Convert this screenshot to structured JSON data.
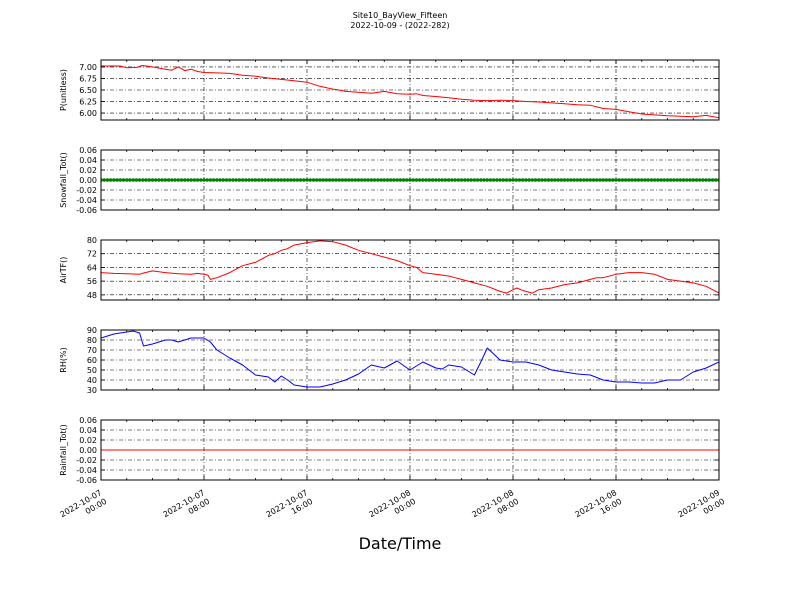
{
  "title": "Site10_BayView_Fifteen",
  "subtitle": "2022-10-09 - (2022-282)",
  "xlabel": "Date/Time",
  "x_ticks": [
    [
      "2022-10-07",
      "00:00"
    ],
    [
      "2022-10-07",
      "08:00"
    ],
    [
      "2022-10-07",
      "16:00"
    ],
    [
      "2022-10-08",
      "00:00"
    ],
    [
      "2022-10-08",
      "08:00"
    ],
    [
      "2022-10-08",
      "16:00"
    ],
    [
      "2022-10-09",
      "00:00"
    ]
  ],
  "colors": {
    "P": "#ff0000",
    "Snowfall": "#008000",
    "AirT": "#ff0000",
    "RH": "#0000ff",
    "Rainfall": "#ff0000"
  },
  "chart_data": [
    {
      "type": "line",
      "ylabel": "P(unitless)",
      "x_range_hours": [
        0,
        48
      ],
      "ylim": [
        5.85,
        7.15
      ],
      "yticks": [
        "6.00",
        "6.25",
        "6.50",
        "6.75",
        "7.00"
      ],
      "ytick_values": [
        6.0,
        6.25,
        6.5,
        6.75,
        7.0
      ],
      "grid": true,
      "series": [
        {
          "color": "#ff0000",
          "x": [
            0,
            1.5,
            2,
            2.8,
            3.2,
            4,
            5,
            5.5,
            6,
            6.5,
            7,
            7.5,
            8,
            9,
            10,
            11,
            12,
            13,
            14,
            15,
            16,
            17,
            18,
            18.5,
            19,
            20,
            21,
            22,
            23,
            24,
            24.5,
            25,
            26,
            27,
            28,
            29,
            30,
            31,
            32,
            33,
            34,
            35,
            36,
            37,
            38,
            39,
            40,
            41,
            42,
            43,
            44,
            45,
            46,
            47,
            48
          ],
          "values": [
            7.02,
            7.02,
            6.98,
            6.99,
            7.03,
            7.0,
            6.95,
            6.93,
            7.0,
            6.92,
            6.95,
            6.9,
            6.88,
            6.87,
            6.86,
            6.82,
            6.8,
            6.76,
            6.73,
            6.7,
            6.67,
            6.58,
            6.52,
            6.5,
            6.47,
            6.45,
            6.43,
            6.47,
            6.42,
            6.41,
            6.42,
            6.38,
            6.36,
            6.33,
            6.3,
            6.28,
            6.27,
            6.28,
            6.27,
            6.25,
            6.24,
            6.22,
            6.2,
            6.18,
            6.17,
            6.1,
            6.08,
            6.03,
            5.98,
            5.96,
            5.94,
            5.93,
            5.92,
            5.95,
            5.9
          ]
        }
      ]
    },
    {
      "type": "scatter",
      "ylabel": "Snowfall_Tot()",
      "x_range_hours": [
        0,
        48
      ],
      "ylim": [
        -0.06,
        0.06
      ],
      "yticks": [
        "-0.06",
        "-0.04",
        "-0.02",
        "0.00",
        "0.02",
        "0.04",
        "0.06"
      ],
      "ytick_values": [
        -0.06,
        -0.04,
        -0.02,
        0.0,
        0.02,
        0.04,
        0.06
      ],
      "grid": true,
      "series": [
        {
          "color": "#008000",
          "constant": 0.0,
          "interval_hours": 0.25
        }
      ]
    },
    {
      "type": "line",
      "ylabel": "AirTF()",
      "x_range_hours": [
        0,
        48
      ],
      "ylim": [
        45,
        80
      ],
      "yticks": [
        "48",
        "56",
        "64",
        "72",
        "80"
      ],
      "ytick_values": [
        48,
        56,
        64,
        72,
        80
      ],
      "grid": true,
      "series": [
        {
          "color": "#ff0000",
          "x": [
            0,
            1,
            2,
            3,
            3.2,
            4,
            5,
            6,
            7,
            7.5,
            8,
            8.3,
            8.5,
            9,
            10,
            10.5,
            11,
            12,
            12.5,
            13,
            13.5,
            14,
            14.5,
            15,
            16,
            17,
            18,
            19,
            20,
            21,
            22,
            23,
            24,
            24.5,
            25,
            26,
            27,
            27.5,
            28,
            29,
            30,
            31,
            31.5,
            32,
            32.3,
            32.6,
            33,
            33.5,
            34,
            35,
            36,
            37,
            38,
            38.5,
            39,
            40,
            41,
            42,
            43,
            44,
            45,
            46,
            47,
            48
          ],
          "values": [
            61,
            60.5,
            60.3,
            60,
            60.5,
            62,
            61,
            60.3,
            60,
            60.5,
            60,
            59.5,
            57,
            58,
            61,
            63,
            65,
            67,
            69,
            71,
            72,
            74,
            75,
            77,
            78.5,
            79.5,
            79,
            77,
            74,
            72,
            70,
            68,
            65,
            64,
            61,
            60,
            59,
            58,
            57,
            55,
            53,
            50,
            49,
            51,
            52,
            51,
            50,
            49,
            51,
            52,
            54,
            55,
            57,
            58,
            58,
            60,
            61,
            61,
            60,
            57,
            56,
            55,
            53,
            49
          ]
        }
      ]
    },
    {
      "type": "line",
      "ylabel": "RH(%)",
      "x_range_hours": [
        0,
        48
      ],
      "ylim": [
        30,
        90
      ],
      "yticks": [
        "30",
        "40",
        "50",
        "60",
        "70",
        "80",
        "90"
      ],
      "ytick_values": [
        30,
        40,
        50,
        60,
        70,
        80,
        90
      ],
      "grid": true,
      "series": [
        {
          "color": "#0000ff",
          "x": [
            0,
            1,
            2,
            2.5,
            3,
            3.3,
            4,
            5,
            5.5,
            6,
            7,
            8,
            8.5,
            9,
            10,
            11,
            12,
            13,
            13.5,
            14,
            14.5,
            15,
            16,
            17,
            18,
            19,
            20,
            21,
            22,
            23,
            24,
            25,
            26,
            26.5,
            27,
            28,
            29,
            29.5,
            30,
            31,
            31.5,
            32,
            33,
            34,
            35,
            36,
            37,
            38,
            39,
            40,
            41,
            42,
            43,
            44,
            45,
            46,
            47,
            48
          ],
          "values": [
            82,
            86,
            88,
            89,
            87,
            74,
            76,
            80,
            80,
            78,
            82,
            82,
            78,
            70,
            62,
            55,
            45,
            43,
            38,
            44,
            40,
            35,
            33,
            33,
            36,
            40,
            46,
            55,
            52,
            59,
            50,
            58,
            52,
            51,
            55,
            53,
            45,
            58,
            72,
            60,
            59,
            58,
            58,
            55,
            50,
            48,
            46,
            45,
            40,
            38,
            38,
            37,
            37,
            40,
            40,
            48,
            52,
            58
          ]
        }
      ]
    },
    {
      "type": "line",
      "ylabel": "Rainfall_Tot()",
      "x_range_hours": [
        0,
        48
      ],
      "ylim": [
        -0.06,
        0.06
      ],
      "yticks": [
        "-0.06",
        "-0.04",
        "-0.02",
        "0.00",
        "0.02",
        "0.04",
        "0.06"
      ],
      "ytick_values": [
        -0.06,
        -0.04,
        -0.02,
        0.0,
        0.02,
        0.04,
        0.06
      ],
      "grid": true,
      "series": [
        {
          "color": "#ff0000",
          "x": [
            0,
            48
          ],
          "values": [
            0.0,
            0.0
          ]
        }
      ]
    }
  ]
}
